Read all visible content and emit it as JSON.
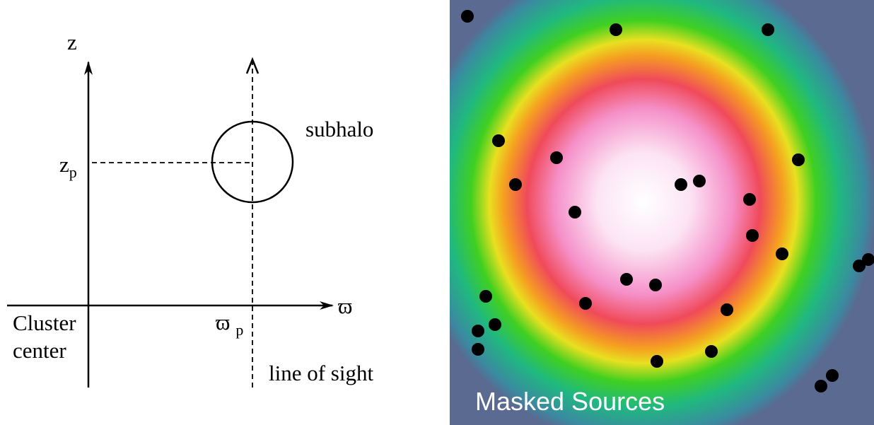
{
  "diagram": {
    "z_axis_label": "z",
    "z_marker": {
      "symbol": "z",
      "subscript": "p"
    },
    "circle_label": "subhalo",
    "horizontal_axis_label": "ϖ",
    "varpi_marker": {
      "symbol": "ϖ",
      "subscript": "p"
    },
    "origin_label": [
      "Cluster",
      "center"
    ],
    "dashed_line_label": "line of sight"
  },
  "image": {
    "caption": "Masked Sources"
  }
}
